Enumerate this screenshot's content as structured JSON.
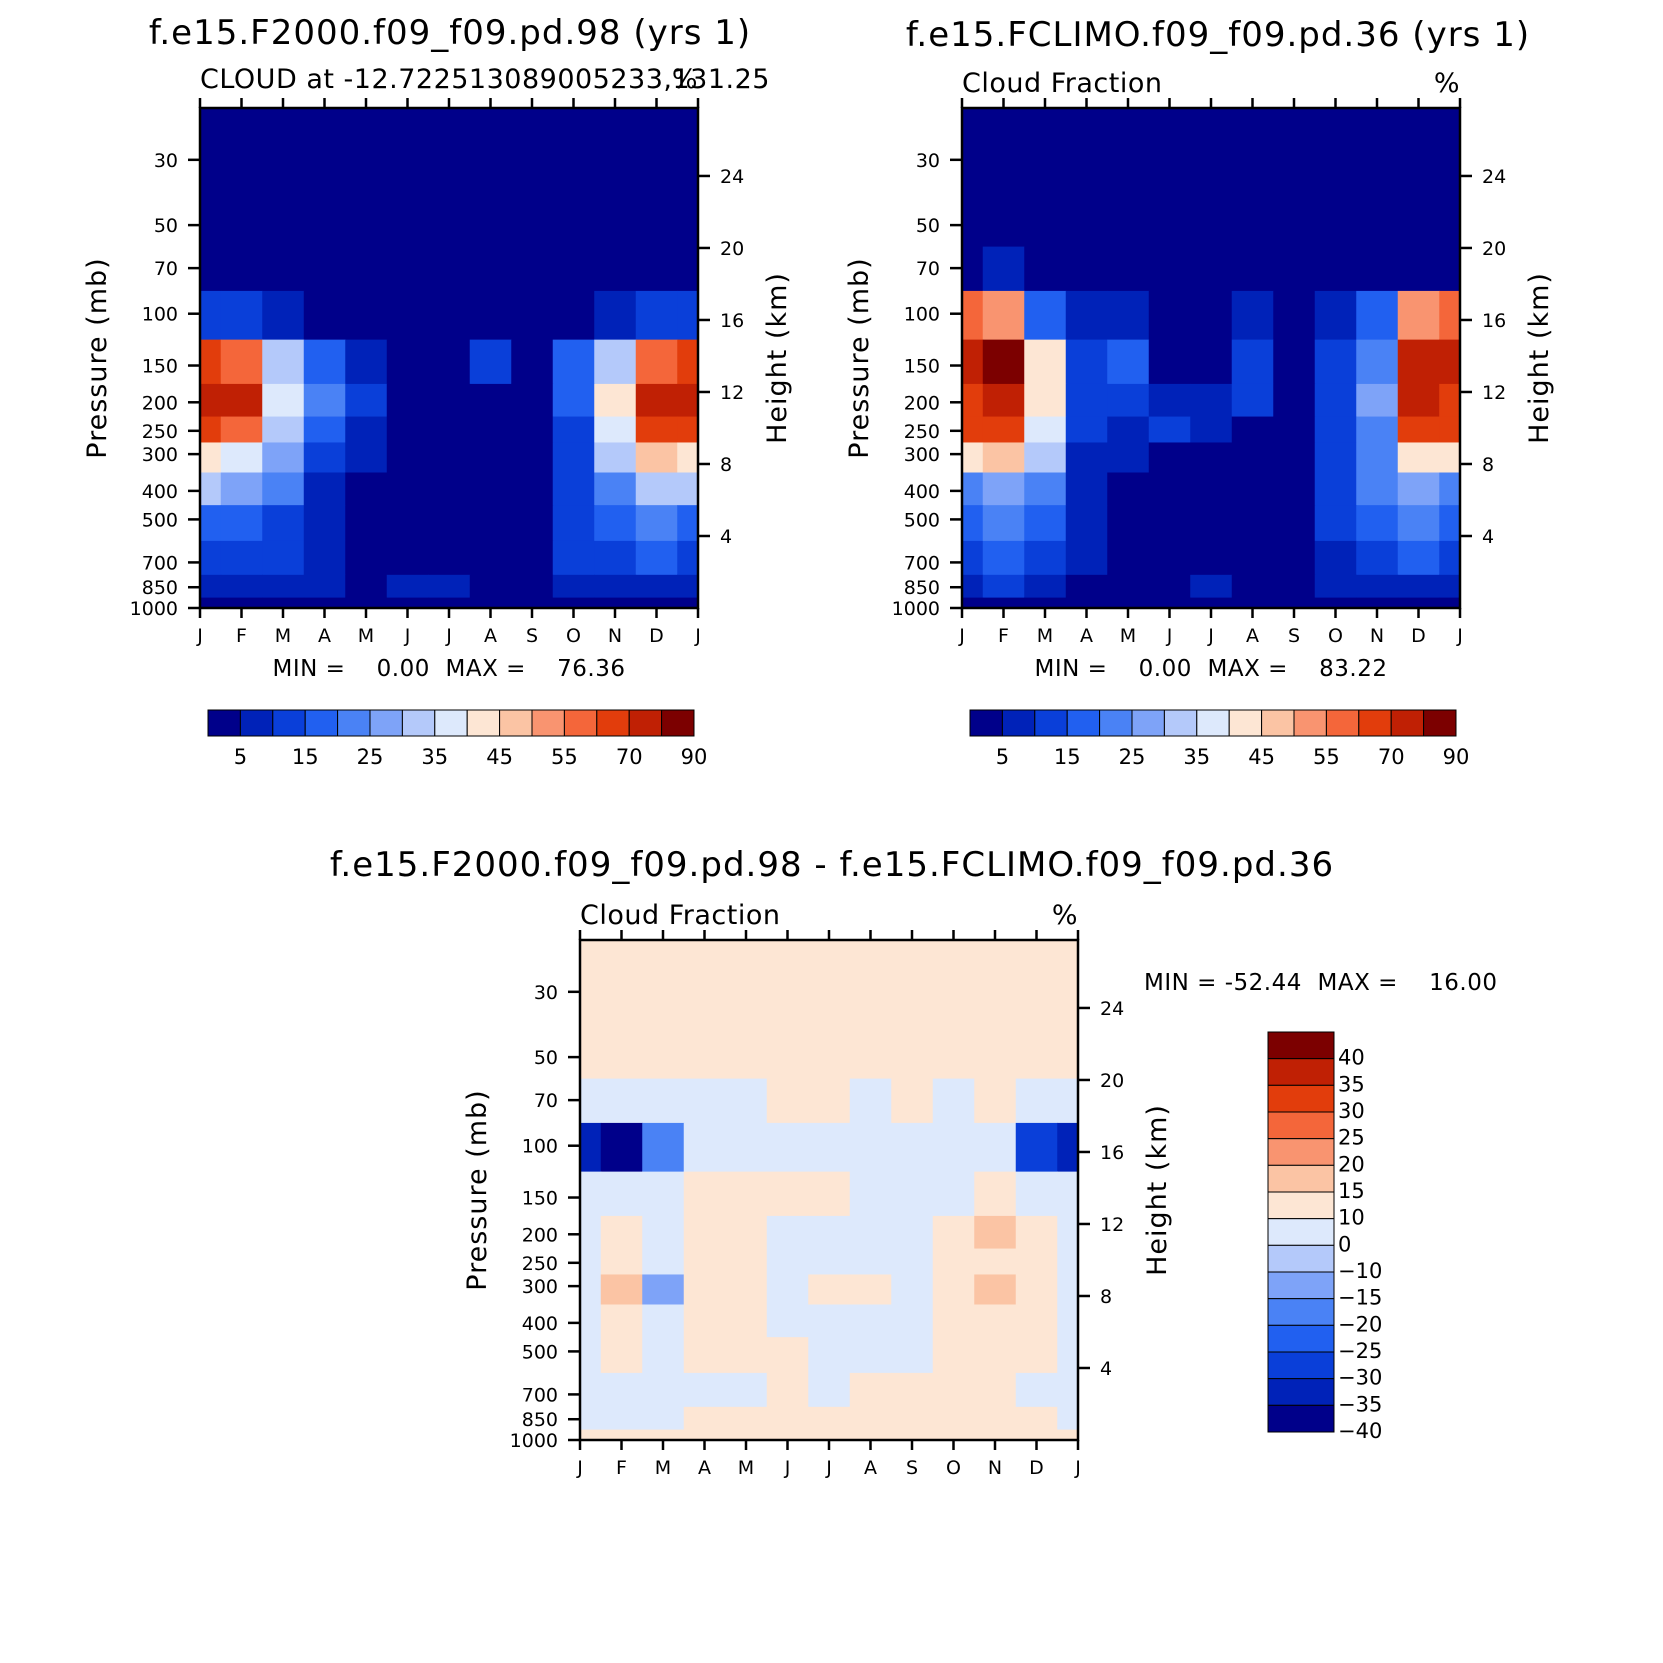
{
  "chart_data": [
    {
      "type": "heatmap",
      "title": "f.e15.F2000.f09_f09.pd.98 (yrs 1)",
      "left_subtitle": "CLOUD at -12.722513089005233,131.25",
      "right_subtitle": "%",
      "xlabel": "",
      "ylabel": "Pressure (mb)",
      "ylabel_right": "Height (km)",
      "x_ticklabels": [
        "J",
        "F",
        "M",
        "A",
        "M",
        "J",
        "J",
        "A",
        "S",
        "O",
        "N",
        "D",
        "J"
      ],
      "y_ticks": [
        30,
        50,
        70,
        100,
        150,
        200,
        250,
        300,
        400,
        500,
        700,
        850,
        1000
      ],
      "height_ticks": [
        4,
        8,
        12,
        16,
        20,
        24
      ],
      "ylim": [
        1000,
        20
      ],
      "min_max_text": "MIN =    0.00  MAX =    76.36",
      "min": 0.0,
      "max": 76.36,
      "colorbar_labels": [
        "5",
        "15",
        "25",
        "35",
        "45",
        "55",
        "70",
        "90"
      ],
      "colorbar_colors": [
        "#00008a",
        "#0022b8",
        "#0a3fd9",
        "#2160f0",
        "#4a82f5",
        "#7ea3f8",
        "#b4c9fa",
        "#dde9fc",
        "#fde6d4",
        "#fbc4a4",
        "#f99470",
        "#f4663a",
        "#e23d0c",
        "#c02004",
        "#7c0000"
      ],
      "months": [
        "J",
        "F",
        "M",
        "A",
        "M",
        "J",
        "J",
        "A",
        "S",
        "O",
        "N",
        "D",
        "J"
      ],
      "levels": [
        30,
        50,
        70,
        100,
        150,
        200,
        250,
        300,
        400,
        500,
        700,
        850,
        1000
      ],
      "values": [
        [
          0,
          0,
          0,
          0,
          0,
          0,
          0,
          0,
          0,
          0,
          0,
          0,
          0
        ],
        [
          0,
          0,
          0,
          0,
          0,
          0,
          0,
          0,
          0,
          0,
          0,
          0,
          0
        ],
        [
          0,
          0,
          0,
          0,
          0,
          0,
          0,
          0,
          0,
          0,
          0,
          0,
          0
        ],
        [
          12,
          10,
          6,
          2,
          1,
          0,
          0,
          0,
          0,
          2,
          8,
          10,
          12
        ],
        [
          62,
          55,
          30,
          15,
          8,
          2,
          0,
          10,
          1,
          16,
          32,
          55,
          62
        ],
        [
          72,
          74,
          38,
          20,
          10,
          4,
          1,
          2,
          2,
          16,
          40,
          76,
          72
        ],
        [
          60,
          58,
          32,
          16,
          8,
          2,
          0,
          0,
          1,
          14,
          36,
          64,
          60
        ],
        [
          42,
          38,
          26,
          12,
          6,
          2,
          0,
          0,
          1,
          12,
          30,
          46,
          42
        ],
        [
          30,
          26,
          20,
          9,
          4,
          1,
          0,
          0,
          1,
          12,
          24,
          34,
          30
        ],
        [
          18,
          16,
          13,
          7,
          2,
          1,
          0,
          0,
          1,
          12,
          18,
          22,
          18
        ],
        [
          12,
          12,
          10,
          7,
          4,
          1,
          0,
          1,
          2,
          12,
          14,
          15,
          12
        ],
        [
          6,
          7,
          7,
          6,
          4,
          8,
          8,
          1,
          1,
          7,
          8,
          9,
          6
        ],
        [
          2,
          2,
          2,
          2,
          2,
          2,
          2,
          1,
          1,
          2,
          2,
          2,
          2
        ]
      ]
    },
    {
      "type": "heatmap",
      "title": "f.e15.FCLIMO.f09_f09.pd.36 (yrs 1)",
      "left_subtitle": "Cloud Fraction",
      "right_subtitle": "%",
      "xlabel": "",
      "ylabel": "Pressure (mb)",
      "ylabel_right": "Height (km)",
      "x_ticklabels": [
        "J",
        "F",
        "M",
        "A",
        "M",
        "J",
        "J",
        "A",
        "S",
        "O",
        "N",
        "D",
        "J"
      ],
      "y_ticks": [
        30,
        50,
        70,
        100,
        150,
        200,
        250,
        300,
        400,
        500,
        700,
        850,
        1000
      ],
      "height_ticks": [
        4,
        8,
        12,
        16,
        20,
        24
      ],
      "ylim": [
        1000,
        20
      ],
      "min_max_text": "MIN =    0.00  MAX =    83.22",
      "min": 0.0,
      "max": 83.22,
      "colorbar_labels": [
        "5",
        "15",
        "25",
        "35",
        "45",
        "55",
        "70",
        "90"
      ],
      "colorbar_colors": [
        "#00008a",
        "#0022b8",
        "#0a3fd9",
        "#2160f0",
        "#4a82f5",
        "#7ea3f8",
        "#b4c9fa",
        "#dde9fc",
        "#fde6d4",
        "#fbc4a4",
        "#f99470",
        "#f4663a",
        "#e23d0c",
        "#c02004",
        "#7c0000"
      ],
      "months": [
        "J",
        "F",
        "M",
        "A",
        "M",
        "J",
        "J",
        "A",
        "S",
        "O",
        "N",
        "D",
        "J"
      ],
      "levels": [
        30,
        50,
        70,
        100,
        150,
        200,
        250,
        300,
        400,
        500,
        700,
        850,
        1000
      ],
      "values": [
        [
          0,
          0,
          0,
          0,
          0,
          0,
          0,
          0,
          0,
          0,
          0,
          0,
          0
        ],
        [
          0,
          0,
          0,
          0,
          0,
          0,
          0,
          0,
          0,
          0,
          0,
          0,
          0
        ],
        [
          4,
          6,
          2,
          0,
          0,
          0,
          0,
          0,
          0,
          0,
          0,
          2,
          4
        ],
        [
          55,
          52,
          18,
          6,
          6,
          2,
          2,
          8,
          0,
          6,
          16,
          52,
          55
        ],
        [
          76,
          82,
          40,
          12,
          18,
          4,
          4,
          14,
          0,
          14,
          24,
          76,
          76
        ],
        [
          68,
          72,
          42,
          14,
          12,
          8,
          8,
          10,
          0,
          14,
          26,
          72,
          68
        ],
        [
          60,
          60,
          36,
          10,
          8,
          10,
          8,
          0,
          0,
          14,
          24,
          62,
          60
        ],
        [
          42,
          46,
          30,
          8,
          6,
          4,
          0,
          0,
          0,
          12,
          22,
          44,
          42
        ],
        [
          24,
          28,
          22,
          6,
          2,
          0,
          0,
          0,
          0,
          12,
          20,
          28,
          24
        ],
        [
          18,
          20,
          16,
          6,
          0,
          0,
          0,
          0,
          0,
          10,
          18,
          22,
          18
        ],
        [
          14,
          16,
          14,
          6,
          2,
          0,
          0,
          0,
          0,
          8,
          14,
          16,
          14
        ],
        [
          8,
          10,
          8,
          4,
          2,
          1,
          6,
          1,
          1,
          6,
          8,
          8,
          8
        ],
        [
          2,
          2,
          2,
          2,
          2,
          2,
          2,
          2,
          2,
          2,
          2,
          2,
          2
        ]
      ]
    },
    {
      "type": "heatmap",
      "title": "f.e15.F2000.f09_f09.pd.98 - f.e15.FCLIMO.f09_f09.pd.36",
      "left_subtitle": "Cloud Fraction",
      "right_subtitle": "%",
      "xlabel": "",
      "ylabel": "Pressure (mb)",
      "ylabel_right": "Height (km)",
      "x_ticklabels": [
        "J",
        "F",
        "M",
        "A",
        "M",
        "J",
        "J",
        "A",
        "S",
        "O",
        "N",
        "D",
        "J"
      ],
      "y_ticks": [
        30,
        50,
        70,
        100,
        150,
        200,
        250,
        300,
        400,
        500,
        700,
        850,
        1000
      ],
      "height_ticks": [
        4,
        8,
        12,
        16,
        20,
        24
      ],
      "ylim": [
        1000,
        20
      ],
      "min_max_text": "MIN = -52.44  MAX =    16.00",
      "min": -52.44,
      "max": 16.0,
      "colorbar_labels": [
        "40",
        "35",
        "30",
        "25",
        "20",
        "15",
        "10",
        "0",
        "-10",
        "-15",
        "-20",
        "-25",
        "-30",
        "-35",
        "-40"
      ],
      "colorbar_colors": [
        "#7c0000",
        "#c02004",
        "#e23d0c",
        "#f4663a",
        "#f99470",
        "#fbc4a4",
        "#fde6d4",
        "#dde9fc",
        "#b4c9fa",
        "#7ea3f8",
        "#4a82f5",
        "#2160f0",
        "#0a3fd9",
        "#0022b8",
        "#00008a"
      ],
      "months": [
        "J",
        "F",
        "M",
        "A",
        "M",
        "J",
        "J",
        "A",
        "S",
        "O",
        "N",
        "D",
        "J"
      ],
      "levels": [
        30,
        50,
        70,
        100,
        150,
        200,
        250,
        300,
        400,
        500,
        700,
        850,
        1000
      ],
      "values": [
        [
          2,
          2,
          2,
          2,
          2,
          2,
          2,
          2,
          2,
          2,
          2,
          2,
          2
        ],
        [
          2,
          2,
          2,
          2,
          2,
          2,
          2,
          2,
          2,
          2,
          2,
          2,
          2
        ],
        [
          -2,
          -2,
          -2,
          -2,
          -2,
          2,
          2,
          -2,
          2,
          -2,
          2,
          -2,
          -2
        ],
        [
          -38,
          -52,
          -22,
          -2,
          -8,
          -2,
          -2,
          -2,
          -2,
          -2,
          -2,
          -35,
          -38
        ],
        [
          -4,
          -8,
          -6,
          2,
          2,
          2,
          2,
          -2,
          -2,
          -2,
          6,
          -6,
          -4
        ],
        [
          -2,
          2,
          -2,
          2,
          2,
          -2,
          -2,
          -2,
          -2,
          2,
          12,
          2,
          -2
        ],
        [
          -2,
          2,
          -8,
          2,
          2,
          -2,
          -2,
          -2,
          -2,
          2,
          2,
          2,
          -2
        ],
        [
          -2,
          12,
          -16,
          2,
          2,
          -2,
          2,
          2,
          -2,
          2,
          12,
          2,
          -2
        ],
        [
          -2,
          2,
          -8,
          8,
          2,
          -2,
          -2,
          -2,
          -2,
          2,
          2,
          2,
          -2
        ],
        [
          -2,
          2,
          -2,
          2,
          2,
          2,
          -2,
          -2,
          -2,
          2,
          2,
          2,
          -2
        ],
        [
          -2,
          -2,
          -2,
          -2,
          -2,
          2,
          -2,
          2,
          2,
          2,
          2,
          -2,
          -2
        ],
        [
          -2,
          -2,
          -2,
          2,
          2,
          2,
          6,
          2,
          2,
          2,
          2,
          2,
          -2
        ],
        [
          2,
          2,
          2,
          2,
          2,
          2,
          2,
          2,
          2,
          2,
          2,
          2,
          2
        ]
      ]
    }
  ]
}
